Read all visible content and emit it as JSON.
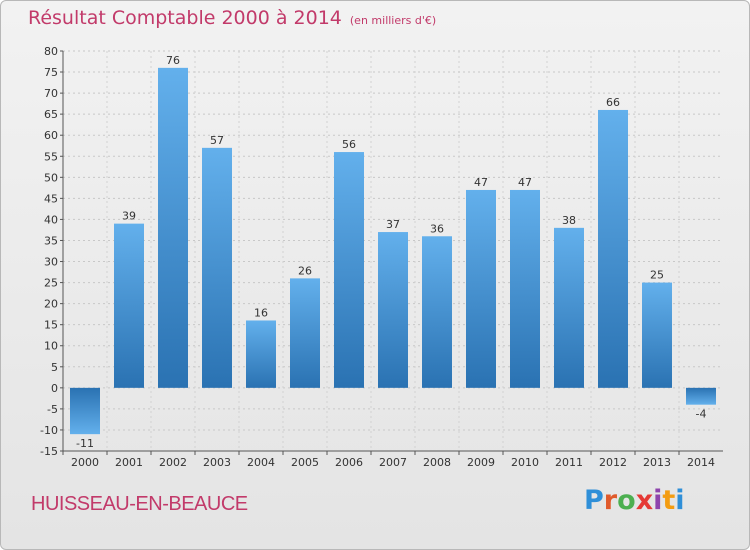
{
  "chart_data": {
    "type": "bar",
    "title": "Résultat Comptable 2000 à 2014",
    "subtitle": "(en milliers d'€)",
    "categories": [
      "2000",
      "2001",
      "2002",
      "2003",
      "2004",
      "2005",
      "2006",
      "2007",
      "2008",
      "2009",
      "2010",
      "2011",
      "2012",
      "2013",
      "2014"
    ],
    "values": [
      -11,
      39,
      76,
      57,
      16,
      26,
      56,
      37,
      36,
      47,
      47,
      38,
      66,
      25,
      -4
    ],
    "value_labels": [
      "-11",
      "39",
      "76",
      "57",
      "16",
      "26",
      "56",
      "37",
      "36",
      "47",
      "47",
      "38",
      "66",
      "25",
      "-4"
    ],
    "ylim": [
      -15,
      80
    ],
    "ytick_step": 5,
    "grid": true,
    "bar_color": "#3d8fd1",
    "bar_color_light": "#63b0ec",
    "bar_color_dark": "#2a72b2"
  },
  "footer": {
    "commune": "HUISSEAU-EN-BEAUCE",
    "brand_letters": [
      "P",
      "r",
      "o",
      "x",
      "i",
      "t",
      "i"
    ],
    "brand_colors": [
      "#2f8fd8",
      "#e05a2b",
      "#4caf50",
      "#e53935",
      "#8e44ad",
      "#f39c12",
      "#2f8fd8"
    ]
  }
}
